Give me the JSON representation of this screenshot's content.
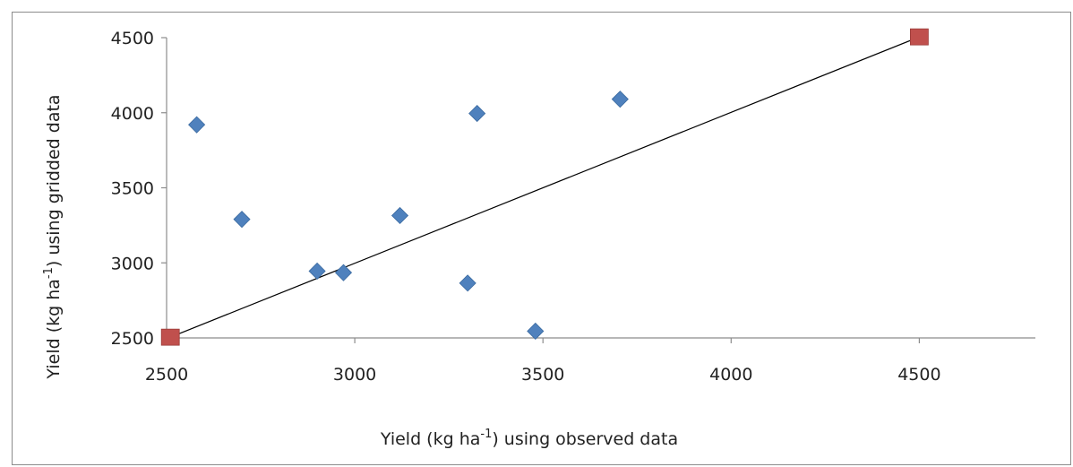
{
  "chart_data": {
    "type": "scatter",
    "xlabel": {
      "pre": "Yield (kg ha",
      "sup": "-1",
      "post": ") using observed data"
    },
    "ylabel": {
      "pre": "Yield (kg ha",
      "sup": "-1",
      "post": ") using gridded data"
    },
    "xlim": [
      2500,
      4800
    ],
    "ylim": [
      2500,
      4500
    ],
    "x_ticks": [
      2500,
      3000,
      3500,
      4000,
      4500
    ],
    "y_ticks": [
      2500,
      3000,
      3500,
      4000,
      4500
    ],
    "x_tick_labels": [
      "2500",
      "3000",
      "3500",
      "4000",
      "4500"
    ],
    "y_tick_labels": [
      "2500",
      "3000",
      "3500",
      "4000",
      "4500"
    ],
    "grid": false,
    "legend": "none",
    "series": [
      {
        "marker": "diamond",
        "color": "#4f81bd",
        "points": [
          [
            2580,
            3920
          ],
          [
            2700,
            3290
          ],
          [
            2900,
            2945
          ],
          [
            2970,
            2935
          ],
          [
            3120,
            3315
          ],
          [
            3300,
            2865
          ],
          [
            3325,
            3995
          ],
          [
            3480,
            2545
          ],
          [
            3705,
            4090
          ]
        ]
      },
      {
        "marker": "square",
        "color": "#c0504d",
        "points": [
          [
            2510,
            2505
          ],
          [
            4500,
            4505
          ]
        ]
      }
    ],
    "reference_line": {
      "from": [
        2510,
        2505
      ],
      "to": [
        4500,
        4505
      ],
      "color": "#000000"
    }
  }
}
